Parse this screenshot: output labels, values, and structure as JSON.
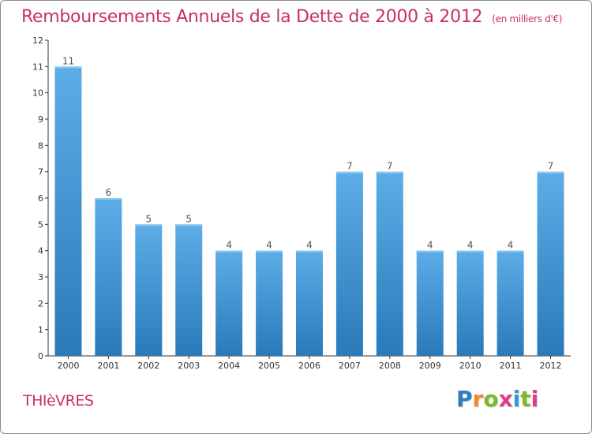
{
  "header": {
    "title": "Remboursements Annuels de la Dette de 2000 à 2012",
    "subtitle": "(en milliers d'€)"
  },
  "footer": {
    "place_name": "THIèVRES",
    "logo_text": [
      "P",
      "r",
      "o",
      "x",
      "i",
      "t",
      "i"
    ]
  },
  "colors": {
    "title": "#c8325a",
    "bar_top": "#5dade8",
    "bar_bottom": "#2a79b9",
    "axis": "#333333",
    "grid": "#d0d0d0"
  },
  "chart_data": {
    "type": "bar",
    "title": "Remboursements Annuels de la Dette de 2000 à 2012",
    "subtitle": "(en milliers d'€)",
    "xlabel": "",
    "ylabel": "",
    "categories": [
      "2000",
      "2001",
      "2002",
      "2003",
      "2004",
      "2005",
      "2006",
      "2007",
      "2008",
      "2009",
      "2010",
      "2011",
      "2012"
    ],
    "values": [
      11,
      6,
      5,
      5,
      4,
      4,
      4,
      7,
      7,
      4,
      4,
      4,
      7
    ],
    "ylim": [
      0,
      12
    ],
    "yticks": [
      0,
      1,
      2,
      3,
      4,
      5,
      6,
      7,
      8,
      9,
      10,
      11,
      12
    ],
    "grid": false,
    "legend": "none"
  }
}
